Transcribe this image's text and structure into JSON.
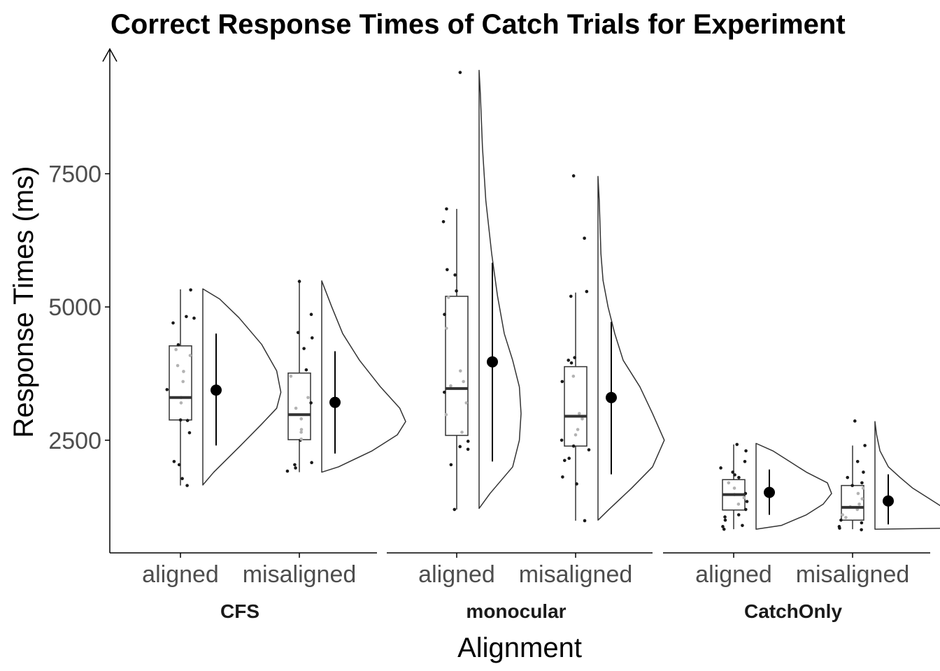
{
  "chart_data": {
    "type": "raincloud",
    "title": "Correct Response Times of Catch Trials for Experiment",
    "xlabel": "Alignment",
    "ylabel": "Response Times (ms)",
    "y_ticks": [
      2500,
      5000,
      7500
    ],
    "ylim": [
      800,
      9700
    ],
    "grid": false,
    "colors": {
      "axis": "#000000",
      "box": "#333333",
      "point_dark": "#1a1a1a",
      "point_light": "#b3b3b3",
      "summary": "#000000"
    },
    "panels": [
      {
        "label": "CFS",
        "groups": [
          {
            "label": "aligned",
            "box": {
              "min": 1650,
              "q1": 2880,
              "median": 3300,
              "q3": 4270,
              "max": 5330
            },
            "summary": {
              "mean": 3440,
              "low": 2400,
              "high": 4500
            },
            "density": [
              [
                1660,
                0.0
              ],
              [
                1900,
                0.13
              ],
              [
                2400,
                0.45
              ],
              [
                2800,
                0.7
              ],
              [
                3100,
                0.88
              ],
              [
                3400,
                0.93
              ],
              [
                3800,
                0.88
              ],
              [
                4300,
                0.7
              ],
              [
                4800,
                0.43
              ],
              [
                5150,
                0.2
              ],
              [
                5340,
                0.0
              ]
            ],
            "points": [
              1650,
              1780,
              2040,
              2100,
              2640,
              2870,
              2880,
              3200,
              3300,
              3450,
              3600,
              3790,
              3900,
              4090,
              4200,
              4290,
              4700,
              4790,
              4820,
              5320
            ]
          },
          {
            "label": "misaligned",
            "box": {
              "min": 1900,
              "q1": 2510,
              "median": 2980,
              "q3": 3760,
              "max": 5490
            },
            "summary": {
              "mean": 3210,
              "low": 2250,
              "high": 4170
            },
            "density": [
              [
                1900,
                0.0
              ],
              [
                2000,
                0.2
              ],
              [
                2300,
                0.6
              ],
              [
                2600,
                0.9
              ],
              [
                2850,
                1.0
              ],
              [
                3100,
                0.93
              ],
              [
                3500,
                0.7
              ],
              [
                4000,
                0.45
              ],
              [
                4500,
                0.25
              ],
              [
                5000,
                0.12
              ],
              [
                5490,
                0.0
              ]
            ],
            "points": [
              1920,
              1980,
              2040,
              2080,
              2500,
              2520,
              2650,
              2700,
              2900,
              3100,
              3200,
              3300,
              3700,
              3820,
              4220,
              4420,
              4520,
              4860,
              5480
            ]
          }
        ]
      },
      {
        "label": "monocular",
        "groups": [
          {
            "label": "aligned",
            "box": {
              "min": 1200,
              "q1": 2590,
              "median": 3470,
              "q3": 5200,
              "max": 6840
            },
            "summary": {
              "mean": 3970,
              "low": 2100,
              "high": 5830
            },
            "density": [
              [
                1220,
                0.0
              ],
              [
                1500,
                0.13
              ],
              [
                2000,
                0.4
              ],
              [
                2500,
                0.48
              ],
              [
                3000,
                0.5
              ],
              [
                3500,
                0.48
              ],
              [
                4000,
                0.4
              ],
              [
                4500,
                0.3
              ],
              [
                5200,
                0.22
              ],
              [
                6000,
                0.15
              ],
              [
                7000,
                0.08
              ],
              [
                8000,
                0.04
              ],
              [
                9000,
                0.015
              ],
              [
                9440,
                0.0
              ]
            ],
            "points": [
              1200,
              2040,
              2330,
              2380,
              2480,
              2650,
              2980,
              3200,
              3400,
              3520,
              3600,
              3800,
              4600,
              4860,
              5180,
              5300,
              5600,
              5700,
              6600,
              6840,
              9400
            ]
          },
          {
            "label": "misaligned",
            "box": {
              "min": 990,
              "q1": 2390,
              "median": 2950,
              "q3": 3880,
              "max": 5270
            },
            "summary": {
              "mean": 3300,
              "low": 1860,
              "high": 4720
            },
            "density": [
              [
                1000,
                0.0
              ],
              [
                1200,
                0.13
              ],
              [
                1600,
                0.4
              ],
              [
                2000,
                0.65
              ],
              [
                2500,
                0.79
              ],
              [
                3000,
                0.65
              ],
              [
                3500,
                0.5
              ],
              [
                4000,
                0.3
              ],
              [
                4500,
                0.2
              ],
              [
                5000,
                0.12
              ],
              [
                5500,
                0.06
              ],
              [
                6000,
                0.035
              ],
              [
                7000,
                0.015
              ],
              [
                7450,
                0.0
              ]
            ],
            "points": [
              990,
              1680,
              1810,
              2120,
              2160,
              2320,
              2390,
              2500,
              2600,
              2700,
              2900,
              3000,
              3600,
              3700,
              3950,
              4000,
              4050,
              5200,
              5290,
              6290,
              7460
            ]
          }
        ]
      },
      {
        "label": "CatchOnly",
        "groups": [
          {
            "label": "aligned",
            "box": {
              "min": 830,
              "q1": 1190,
              "median": 1480,
              "q3": 1760,
              "max": 2420
            },
            "summary": {
              "mean": 1520,
              "low": 1100,
              "high": 1950
            },
            "density": [
              [
                830,
                0.0
              ],
              [
                900,
                0.3
              ],
              [
                1100,
                0.6
              ],
              [
                1300,
                0.8
              ],
              [
                1500,
                0.9
              ],
              [
                1700,
                0.85
              ],
              [
                1900,
                0.6
              ],
              [
                2100,
                0.4
              ],
              [
                2300,
                0.2
              ],
              [
                2440,
                0.0
              ]
            ],
            "points": [
              830,
              880,
              900,
              1000,
              1060,
              1100,
              1200,
              1300,
              1350,
              1420,
              1480,
              1500,
              1600,
              1700,
              1800,
              1850,
              1900,
              1980,
              2100,
              2300,
              2420
            ]
          },
          {
            "label": "misaligned",
            "box": {
              "min": 830,
              "q1": 1000,
              "median": 1240,
              "q3": 1650,
              "max": 2400
            },
            "summary": {
              "mean": 1360,
              "low": 920,
              "high": 1860
            },
            "density": [
              [
                830,
                0.0
              ],
              [
                850,
                0.9
              ],
              [
                1000,
                1.0
              ],
              [
                1200,
                0.85
              ],
              [
                1400,
                0.65
              ],
              [
                1600,
                0.45
              ],
              [
                1800,
                0.3
              ],
              [
                2000,
                0.16
              ],
              [
                2300,
                0.06
              ],
              [
                2600,
                0.02
              ],
              [
                2850,
                0.0
              ]
            ],
            "points": [
              820,
              850,
              880,
              950,
              1000,
              1050,
              1100,
              1200,
              1250,
              1300,
              1400,
              1500,
              1600,
              1650,
              1700,
              1800,
              1900,
              2100,
              2400,
              2860
            ]
          }
        ]
      }
    ]
  }
}
